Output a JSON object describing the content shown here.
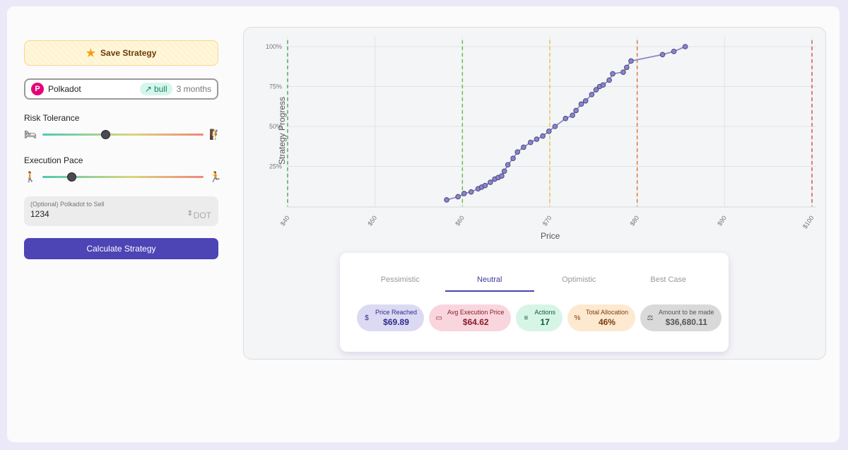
{
  "left": {
    "save_label": "Save Strategy",
    "asset": {
      "logo": "P",
      "name": "Polkadot",
      "trend": "bull",
      "trend_icon": "trending-up-icon",
      "period": "3 months"
    },
    "risk": {
      "label": "Risk Tolerance",
      "value": 0.39,
      "left_icon": "bed-icon",
      "right_icon": "climber-icon"
    },
    "pace": {
      "label": "Execution Pace",
      "value": 0.18,
      "left_icon": "walking-icon",
      "right_icon": "treadmill-icon"
    },
    "sell": {
      "placeholder": "(Optional) Polkadot to Sell",
      "value": "1234",
      "unit": "DOT"
    },
    "calc_label": "Calculate Strategy"
  },
  "chart_data": {
    "type": "line",
    "xlabel": "Price",
    "ylabel": "Strategy Progress",
    "xlim": [
      40,
      100
    ],
    "ylim": [
      0,
      100
    ],
    "x_ticks": [
      "$40",
      "$50",
      "$60",
      "$70",
      "$80",
      "$90",
      "$100"
    ],
    "y_ticks": [
      "25%",
      "50%",
      "75%",
      "100%"
    ],
    "grid": true,
    "vlines": [
      {
        "x": 40,
        "color": "#4caf50"
      },
      {
        "x": 60,
        "color": "#6abf4b"
      },
      {
        "x": 70,
        "color": "#f0c040"
      },
      {
        "x": 80,
        "color": "#e07b39"
      },
      {
        "x": 100,
        "color": "#d9534f"
      }
    ],
    "series": [
      {
        "color": "#8f87cc",
        "points": [
          [
            58.2,
            4
          ],
          [
            59.5,
            6
          ],
          [
            60.2,
            8
          ],
          [
            61.0,
            9
          ],
          [
            61.8,
            11
          ],
          [
            62.2,
            12
          ],
          [
            62.6,
            13
          ],
          [
            63.2,
            15
          ],
          [
            63.7,
            17
          ],
          [
            64.1,
            18
          ],
          [
            64.5,
            19
          ],
          [
            64.8,
            22
          ],
          [
            65.2,
            26
          ],
          [
            65.8,
            30
          ],
          [
            66.3,
            34
          ],
          [
            67.0,
            37
          ],
          [
            67.8,
            40
          ],
          [
            68.5,
            42
          ],
          [
            69.2,
            44
          ],
          [
            69.9,
            47
          ],
          [
            70.6,
            50
          ],
          [
            71.8,
            55
          ],
          [
            72.6,
            57
          ],
          [
            73.0,
            60
          ],
          [
            73.6,
            64
          ],
          [
            74.1,
            66
          ],
          [
            74.8,
            70
          ],
          [
            75.3,
            73
          ],
          [
            75.7,
            75
          ],
          [
            76.1,
            76
          ],
          [
            76.8,
            79
          ],
          [
            77.2,
            83
          ],
          [
            78.4,
            84
          ],
          [
            78.8,
            87
          ],
          [
            79.3,
            91
          ],
          [
            82.9,
            95
          ],
          [
            84.2,
            97
          ],
          [
            85.5,
            100
          ]
        ]
      }
    ]
  },
  "results": {
    "tabs": [
      "Pessimistic",
      "Neutral",
      "Optimistic",
      "Best Case"
    ],
    "active_tab": 1,
    "stats": [
      {
        "icon": "dollar-circle-icon",
        "label": "Price Reached",
        "value": "$69.89"
      },
      {
        "icon": "cash-icon",
        "label": "Avg Execution Price",
        "value": "$64.62"
      },
      {
        "icon": "list-icon",
        "label": "Actions",
        "value": "17"
      },
      {
        "icon": "percent-circle-icon",
        "label": "Total Allocation",
        "value": "46%"
      },
      {
        "icon": "scale-icon",
        "label": "Amount to be made",
        "value": "$36,680.11"
      }
    ]
  }
}
